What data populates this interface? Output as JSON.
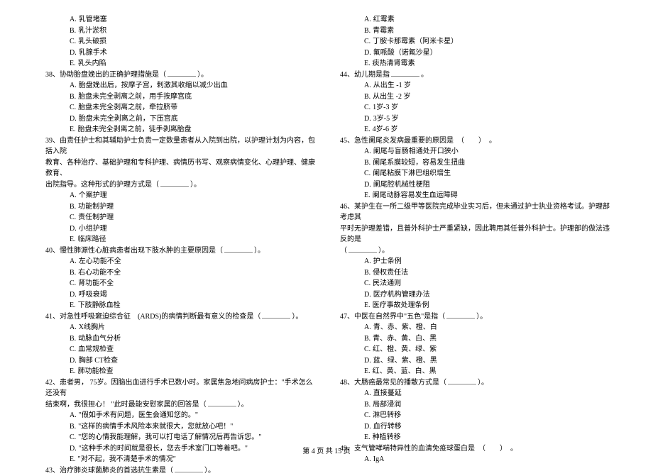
{
  "leftColumn": {
    "prefixOptions": [
      {
        "letter": "A.",
        "text": "乳管堵塞"
      },
      {
        "letter": "B.",
        "text": "乳汁淤积"
      },
      {
        "letter": "C.",
        "text": "乳头破损"
      },
      {
        "letter": "D.",
        "text": "乳腺手术"
      },
      {
        "letter": "E.",
        "text": "乳头内陷"
      }
    ],
    "questions": [
      {
        "num": "38、",
        "text": "协助胎盘娩出的正确护理措施是（",
        "blank": true,
        "tail": "）。",
        "options": [
          {
            "letter": "A.",
            "text": "胎盘娩出后，按摩子宫，刺激其收缩以减少出血"
          },
          {
            "letter": "B.",
            "text": "胎盘未完全剥离之前，用手按摩宫底"
          },
          {
            "letter": "C.",
            "text": "胎盘未完全剥离之前，牵拉脐带"
          },
          {
            "letter": "D.",
            "text": "胎盘未完全剥离之前，下压宫底"
          },
          {
            "letter": "E.",
            "text": "胎盘未完全剥离之前，徒手剥离胎盘"
          }
        ]
      },
      {
        "num": "39、",
        "lines": [
          "由责任护士和其辅助护士负责一定数量患者从入院到出院，以护理计划为内容，包括入院",
          "教育、各种治疗、基础护理和专科护理、病情历书写、观察病情变化、心理护理、健康教育、",
          "出院指导。这种形式的护理方式是（"
        ],
        "blank": true,
        "tail": "）。",
        "options": [
          {
            "letter": "A.",
            "text": "个案护理"
          },
          {
            "letter": "B.",
            "text": "功能制护理"
          },
          {
            "letter": "C.",
            "text": "责任制护理"
          },
          {
            "letter": "D.",
            "text": "小组护理"
          },
          {
            "letter": "E.",
            "text": "临床路径"
          }
        ]
      },
      {
        "num": "40、",
        "text": "慢性肺源性心脏病患者出现下肢水肿的主要原因是（",
        "blank": true,
        "tail": "）。",
        "options": [
          {
            "letter": "A.",
            "text": "左心功能不全"
          },
          {
            "letter": "B.",
            "text": "右心功能不全"
          },
          {
            "letter": "C.",
            "text": "肾功能不全"
          },
          {
            "letter": "D.",
            "text": "呼吸衰竭"
          },
          {
            "letter": "E.",
            "text": "下肢静脉血栓"
          }
        ]
      },
      {
        "num": "41、",
        "text": "对急性呼吸窘迫综合征　(ARDS)的病情判断最有意义的检查是（",
        "blank": true,
        "tail": "）。",
        "options": [
          {
            "letter": "A.",
            "text": "X线胸片"
          },
          {
            "letter": "B.",
            "text": "动脉血气分析"
          },
          {
            "letter": "C.",
            "text": "血常规检查"
          },
          {
            "letter": "D.",
            "text": "胸部 CT检查"
          },
          {
            "letter": "E.",
            "text": "肺功能检查"
          }
        ]
      },
      {
        "num": "42、",
        "lines": [
          "患者男， 75岁。因脑出血进行手术已数小时。家属焦急地问病房护士：\"手术怎么还没有",
          "结束啊，我很担心！ \"此时最能安慰家属的回答是（"
        ],
        "blank": true,
        "tail": "）。",
        "options": [
          {
            "letter": "A.",
            "text": "\"假如手术有问题，医生会通知您的。\""
          },
          {
            "letter": "B.",
            "text": "\"这样的病情手术风险本来就很大，您就放心吧！\""
          },
          {
            "letter": "C.",
            "text": "\"您的心情我能理解，我可以打电话了解情况后再告诉您。\""
          },
          {
            "letter": "D.",
            "text": "\"这种手术的时间就是很长，您去手术室门口等着吧。\""
          },
          {
            "letter": "E.",
            "text": "\"对不起，我不清楚手术的情况\""
          }
        ]
      },
      {
        "num": "43、",
        "text": "治疗肺炎球菌肺炎的首选抗生素是（",
        "blank": true,
        "tail": "）。",
        "options": []
      }
    ]
  },
  "rightColumn": {
    "prefixOptions": [
      {
        "letter": "A.",
        "text": "红霉素"
      },
      {
        "letter": "B.",
        "text": "青霉素"
      },
      {
        "letter": "C.",
        "text": "丁胺卡那霉素（阿米卡星）"
      },
      {
        "letter": "D.",
        "text": "氟哌酸（诺氟沙星）"
      },
      {
        "letter": "E.",
        "text": "痰热清肾霉素"
      }
    ],
    "questions": [
      {
        "num": "44、",
        "text": "幼儿期是指",
        "blank": true,
        "tail": "。",
        "options": [
          {
            "letter": "A.",
            "text": "从出生 -1 岁"
          },
          {
            "letter": "B.",
            "text": "从出生 -2 岁"
          },
          {
            "letter": "C.",
            "text": "1岁-3 岁"
          },
          {
            "letter": "D.",
            "text": "3岁-5 岁"
          },
          {
            "letter": "E.",
            "text": "4岁-6 岁"
          }
        ]
      },
      {
        "num": "45、",
        "text": "急性阑尾炎发病最重要的原因是　（　　）　。",
        "options": [
          {
            "letter": "A.",
            "text": "阑尾与盲肠相通处开口狭小"
          },
          {
            "letter": "B.",
            "text": "阑尾系膜较短，容易发生扭曲"
          },
          {
            "letter": "C.",
            "text": "阑尾粘膜下淋巴组织增生"
          },
          {
            "letter": "D.",
            "text": "阑尾腔机械性梗阻"
          },
          {
            "letter": "E.",
            "text": "阑尾动脉容易发生血运障碍"
          }
        ]
      },
      {
        "num": "46、",
        "lines": [
          "某护生在一所二级甲等医院完成毕业实习后，但未通过护士执业资格考试。护理部考虑其",
          "平时无护理差错，且普外科护士严重紧缺，因此聘用其任普外科护士。护理部的做法违反的是",
          "（"
        ],
        "blank": true,
        "tail": "）。",
        "options": [
          {
            "letter": "A.",
            "text": "护士条例"
          },
          {
            "letter": "B.",
            "text": "侵权责任法"
          },
          {
            "letter": "C.",
            "text": "民法通则"
          },
          {
            "letter": "D.",
            "text": "医疗机构管理办法"
          },
          {
            "letter": "E.",
            "text": "医疗事故处理条例"
          }
        ]
      },
      {
        "num": "47、",
        "text": "中医在自然界中\"五色\"是指（",
        "blank": true,
        "tail": "）。",
        "options": [
          {
            "letter": "A.",
            "text": "青、赤、紫、橙、白"
          },
          {
            "letter": "B.",
            "text": "青、赤、黄、白、黑"
          },
          {
            "letter": "C.",
            "text": "红、橙、黄、绿、紫"
          },
          {
            "letter": "D.",
            "text": "蓝、绿、紫、橙、黑"
          },
          {
            "letter": "E.",
            "text": "红、黄、蓝、白、黑"
          }
        ]
      },
      {
        "num": "48、",
        "text": "大肠癌最常见的播散方式是（",
        "blank": true,
        "tail": "）。",
        "options": [
          {
            "letter": "A.",
            "text": "直接蔓延"
          },
          {
            "letter": "B.",
            "text": "局部浸润"
          },
          {
            "letter": "C.",
            "text": "淋巴转移"
          },
          {
            "letter": "D.",
            "text": "血行转移"
          },
          {
            "letter": "E.",
            "text": "种植转移"
          }
        ]
      },
      {
        "num": "49、",
        "text": "支气管哮喘特异性的血清免疫球蛋白是　（　　）　。",
        "options": [
          {
            "letter": "A.",
            "text": "IgA"
          }
        ]
      }
    ]
  },
  "footer": "第 4 页 共 15 页"
}
